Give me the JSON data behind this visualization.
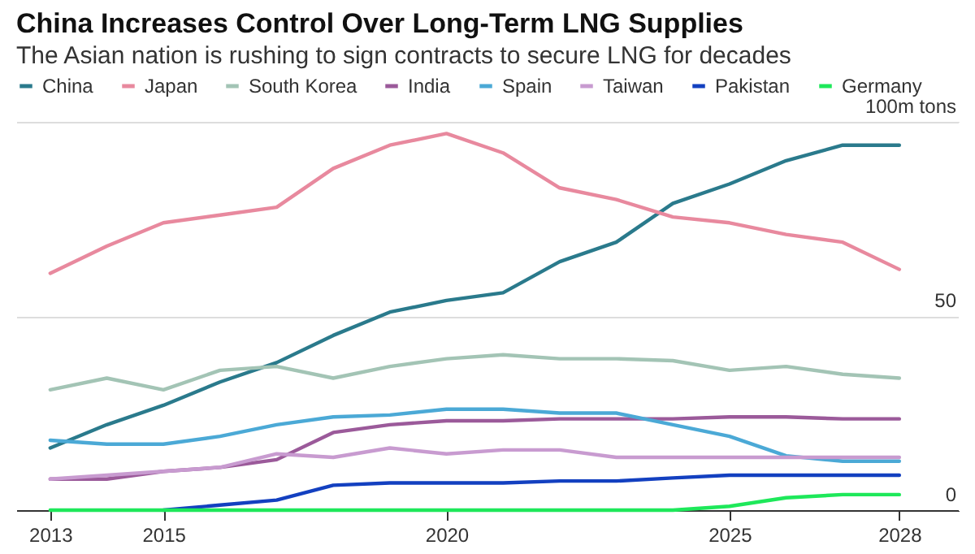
{
  "chart_data": {
    "type": "line",
    "title": "China Increases Control Over Long-Term LNG Supplies",
    "subtitle": "The Asian nation is rushing to sign contracts to secure LNG for decades",
    "x": [
      2013,
      2014,
      2015,
      2016,
      2017,
      2018,
      2019,
      2020,
      2021,
      2022,
      2023,
      2024,
      2025,
      2026,
      2027,
      2028
    ],
    "xlim": [
      2012.4,
      2029.05
    ],
    "xticks": [
      2013,
      2015,
      2020,
      2025,
      2028
    ],
    "ylim": [
      0,
      100
    ],
    "yticks": [
      0,
      50,
      {
        "value": 100,
        "label": "100m tons"
      }
    ],
    "grid": "y",
    "legend": "top",
    "series": [
      {
        "name": "China",
        "color": "#2a7a8c",
        "values": [
          16,
          22,
          27,
          33,
          38,
          45,
          51,
          54,
          56,
          64,
          69,
          79,
          84,
          90,
          94,
          94
        ]
      },
      {
        "name": "Japan",
        "color": "#e8899e",
        "values": [
          61,
          68,
          74,
          76,
          78,
          88,
          94,
          97,
          92,
          83,
          80,
          75.5,
          74,
          71,
          69,
          62
        ]
      },
      {
        "name": "South Korea",
        "color": "#a3c4b5",
        "values": [
          31,
          34,
          31,
          36,
          37,
          34,
          37,
          39,
          40,
          39,
          39,
          38.5,
          36,
          37,
          35,
          34
        ]
      },
      {
        "name": "India",
        "color": "#9b5a9a",
        "values": [
          8,
          8,
          10,
          11,
          13,
          20,
          22,
          23,
          23,
          23.5,
          23.5,
          23.5,
          24,
          24,
          23.5,
          23.5
        ]
      },
      {
        "name": "Spain",
        "color": "#4ba9d6",
        "values": [
          18,
          17,
          17,
          19,
          22,
          24,
          24.5,
          26,
          26,
          25,
          25,
          22,
          19,
          14,
          12.6,
          12.6
        ]
      },
      {
        "name": "Taiwan",
        "color": "#c89bd0",
        "values": [
          8,
          9,
          10,
          11,
          14.5,
          13.6,
          16,
          14.5,
          15.5,
          15.5,
          13.6,
          13.6,
          13.6,
          13.6,
          13.6,
          13.6
        ]
      },
      {
        "name": "Pakistan",
        "color": "#1340c0",
        "values": [
          null,
          null,
          0,
          1.3,
          2.6,
          6.4,
          7,
          7,
          7,
          7.5,
          7.5,
          8.3,
          9,
          9,
          9,
          9
        ]
      },
      {
        "name": "Germany",
        "color": "#1ee85a",
        "values": [
          0,
          0,
          0,
          0,
          0,
          0,
          0,
          0,
          0,
          0,
          0,
          0,
          1,
          3.2,
          4,
          4
        ]
      }
    ]
  }
}
